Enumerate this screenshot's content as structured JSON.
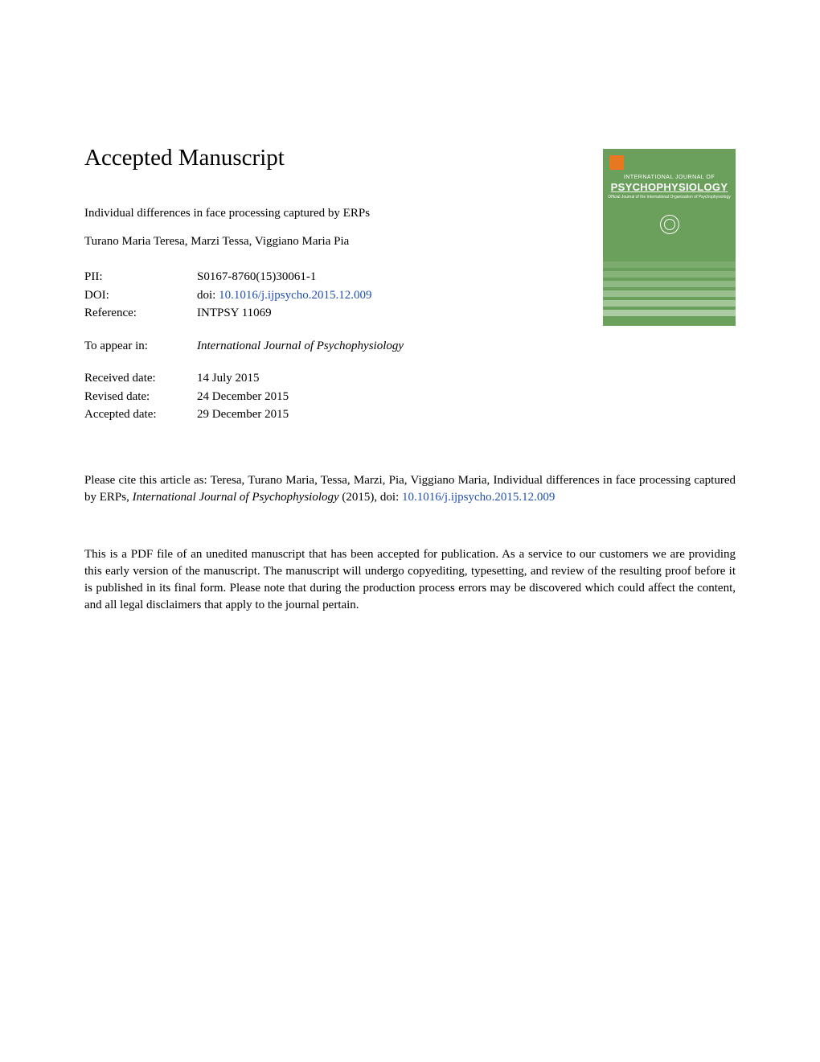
{
  "heading": "Accepted Manuscript",
  "article_title": "Individual differences in face processing captured by ERPs",
  "authors": "Turano Maria Teresa, Marzi Tessa, Viggiano Maria Pia",
  "info": {
    "pii_label": "PII:",
    "pii_value": "S0167-8760(15)30061-1",
    "doi_label": "DOI:",
    "doi_prefix": "doi: ",
    "doi_link": "10.1016/j.ijpsycho.2015.12.009",
    "reference_label": "Reference:",
    "reference_value": "INTPSY 11069",
    "appear_label": "To appear in:",
    "appear_value": "International Journal of Psychophysiology",
    "received_label": "Received date:",
    "received_value": "14 July 2015",
    "revised_label": "Revised date:",
    "revised_value": "24 December 2015",
    "accepted_label": "Accepted date:",
    "accepted_value": "29 December 2015"
  },
  "citation": {
    "prefix": "Please cite this article as: Teresa, Turano Maria, Tessa, Marzi, Pia, Viggiano Maria, Individual differences in face processing captured by ERPs, ",
    "journal": "International Journal of Psychophysiology",
    "year": " (2015), doi: ",
    "doi_link": "10.1016/j.ijpsycho.2015.12.009"
  },
  "disclaimer": "This is a PDF file of an unedited manuscript that has been accepted for publication. As a service to our customers we are providing this early version of the manuscript. The manuscript will undergo copyediting, typesetting, and review of the resulting proof before it is published in its final form. Please note that during the production process errors may be discovered which could affect the content, and all legal disclaimers that apply to the journal pertain.",
  "cover": {
    "subtitle": "INTERNATIONAL JOURNAL OF",
    "title": "PSYCHOPHYSIOLOGY",
    "org": "Official Journal of the International Organization of Psychophysiology",
    "colors": {
      "background": "#6ba05c",
      "text": "#ffffff",
      "publisher": "#e87722"
    }
  }
}
